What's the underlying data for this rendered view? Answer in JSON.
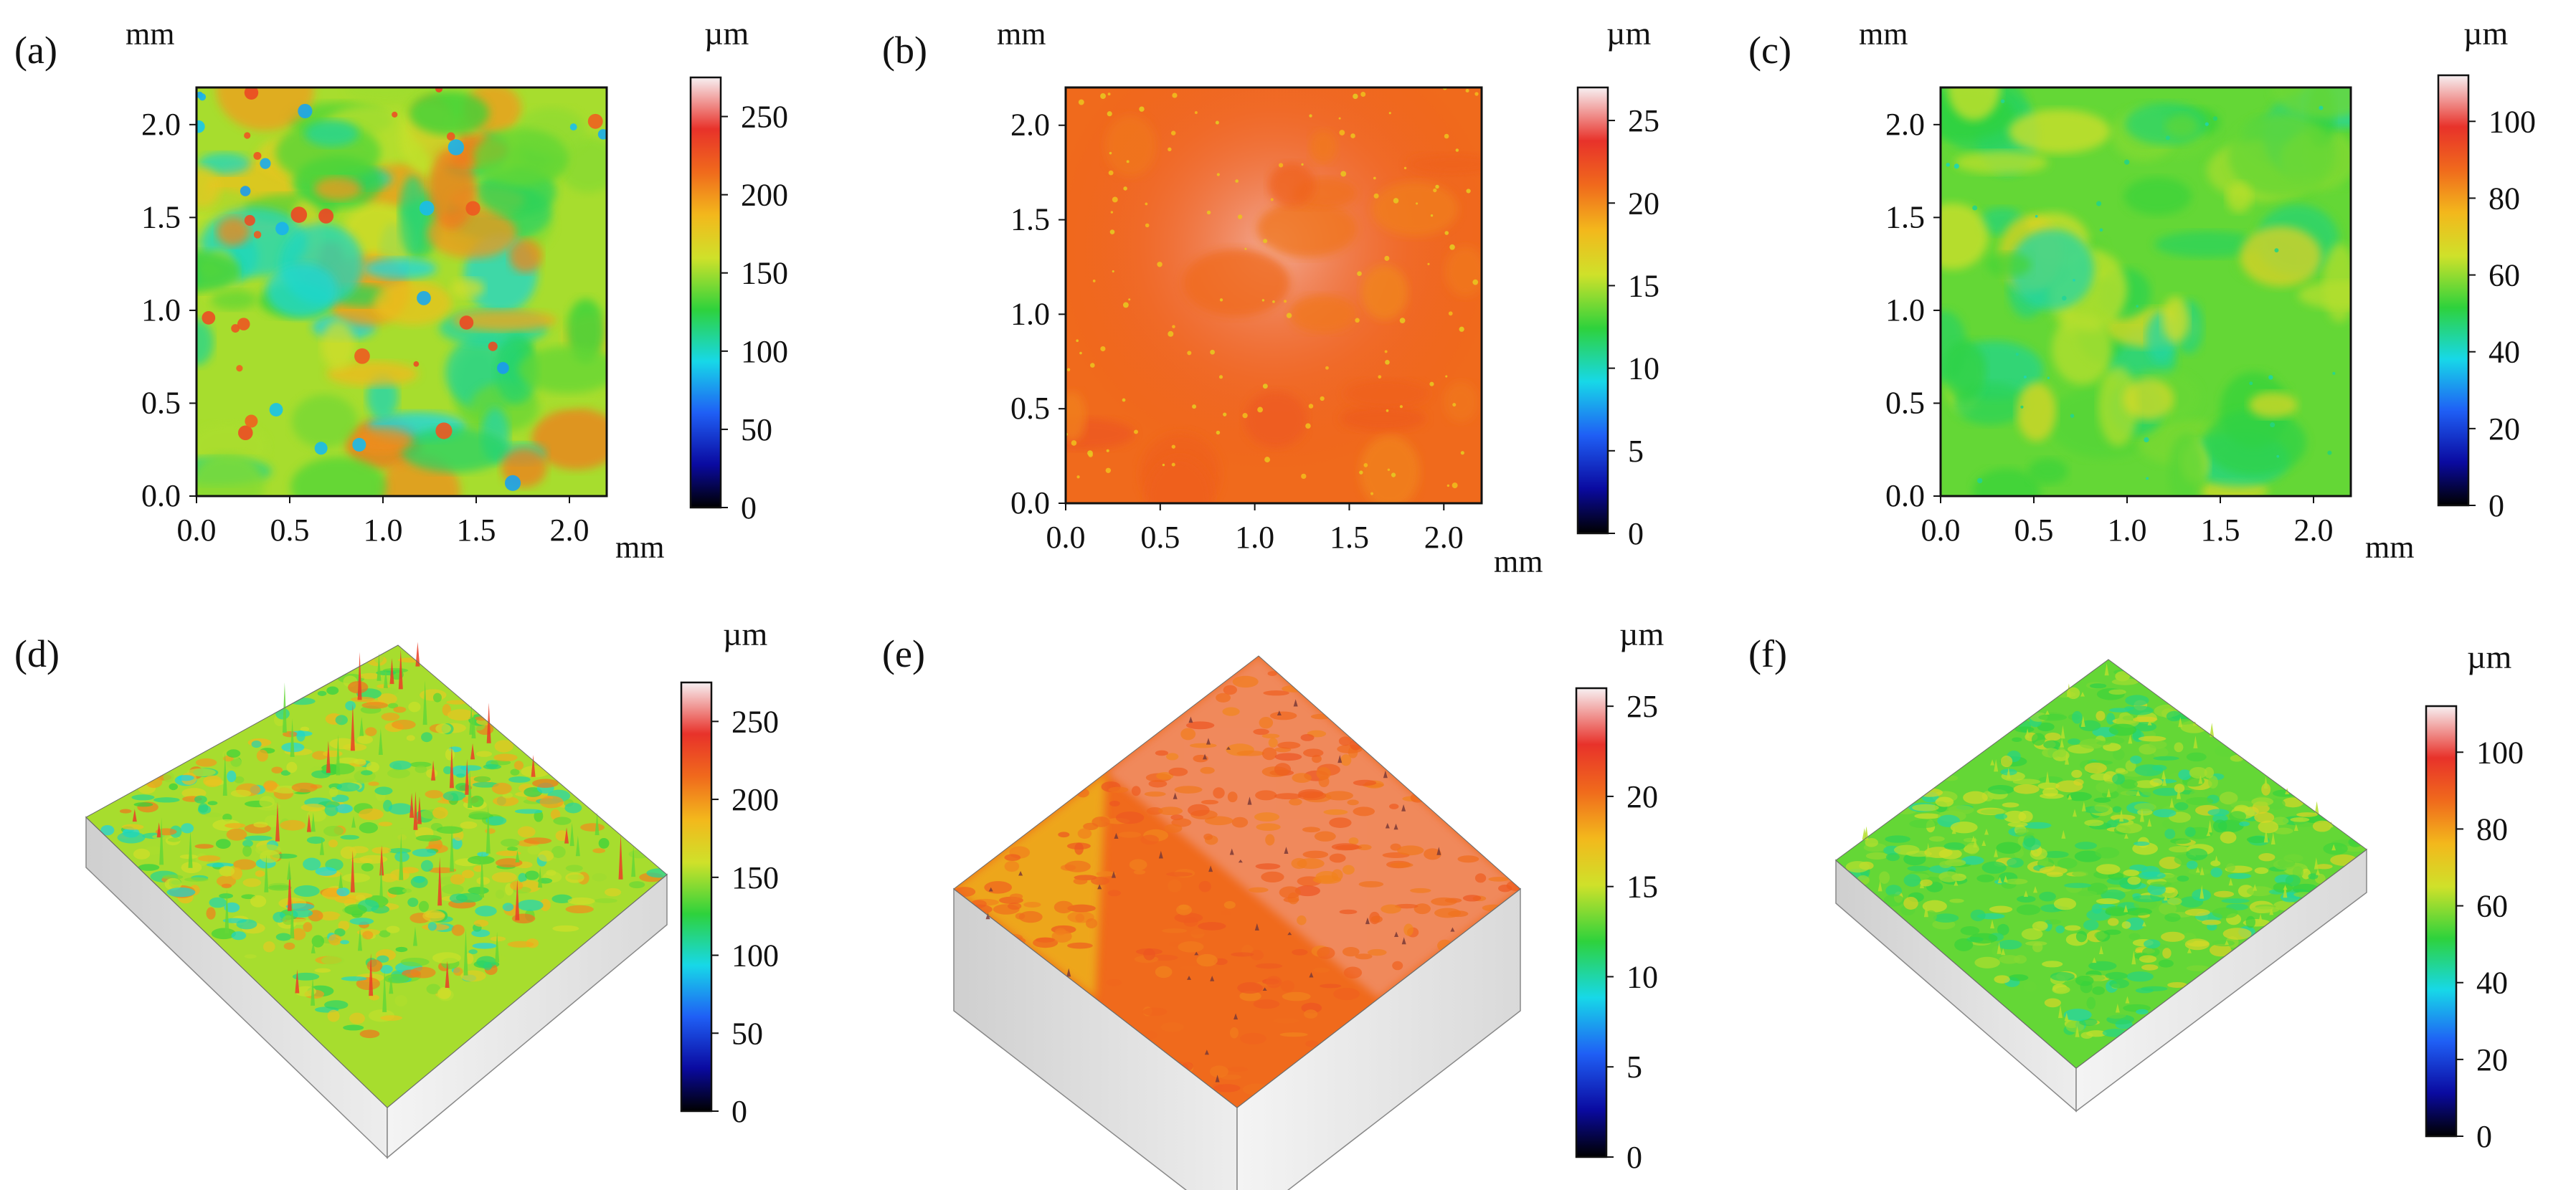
{
  "colors": {
    "colormap": [
      "#000000",
      "#0a0aa0",
      "#1f5ff5",
      "#17d8e8",
      "#2ed23c",
      "#cfe12a",
      "#f3b81c",
      "#f06a1c",
      "#e8322a",
      "#f7f0f2"
    ],
    "tick_color": "#111111"
  },
  "panels": {
    "a": {
      "label": "(a)",
      "kind": "map2d",
      "axis_unit": "mm",
      "bar_unit": "µm",
      "x_ticks": [
        "0.0",
        "0.5",
        "1.0",
        "1.5",
        "2.0"
      ],
      "y_ticks": [
        "0.0",
        "0.5",
        "1.0",
        "1.5",
        "2.0"
      ],
      "bar_ticks": [
        "0",
        "50",
        "100",
        "150",
        "200",
        "250"
      ],
      "bar_max": 275,
      "surface_level": 0.55,
      "surface_variation": "high"
    },
    "b": {
      "label": "(b)",
      "kind": "map2d",
      "axis_unit": "mm",
      "bar_unit": "µm",
      "x_ticks": [
        "0.0",
        "0.5",
        "1.0",
        "1.5",
        "2.0"
      ],
      "y_ticks": [
        "0.0",
        "0.5",
        "1.0",
        "1.5",
        "2.0"
      ],
      "bar_ticks": [
        "0",
        "5",
        "10",
        "15",
        "20",
        "25"
      ],
      "bar_max": 27,
      "surface_level": 0.78,
      "surface_variation": "low"
    },
    "c": {
      "label": "(c)",
      "kind": "map2d",
      "axis_unit": "mm",
      "bar_unit": "µm",
      "x_ticks": [
        "0.0",
        "0.5",
        "1.0",
        "1.5",
        "2.0"
      ],
      "y_ticks": [
        "0.0",
        "0.5",
        "1.0",
        "1.5",
        "2.0"
      ],
      "bar_ticks": [
        "0",
        "20",
        "40",
        "60",
        "80",
        "100"
      ],
      "bar_max": 112,
      "surface_level": 0.5,
      "surface_variation": "medium"
    },
    "d": {
      "label": "(d)",
      "kind": "surface3d",
      "bar_unit": "µm",
      "bar_ticks": [
        "0",
        "50",
        "100",
        "150",
        "200",
        "250"
      ],
      "bar_max": 275,
      "surface_level": 0.55,
      "surface_variation": "high"
    },
    "e": {
      "label": "(e)",
      "kind": "surface3d",
      "bar_unit": "µm",
      "bar_ticks": [
        "0",
        "5",
        "10",
        "15",
        "20",
        "25"
      ],
      "bar_max": 26,
      "surface_level": 0.78,
      "surface_variation": "low"
    },
    "f": {
      "label": "(f)",
      "kind": "surface3d",
      "bar_unit": "µm",
      "bar_ticks": [
        "0",
        "20",
        "40",
        "60",
        "80",
        "100"
      ],
      "bar_max": 112,
      "surface_level": 0.5,
      "surface_variation": "medium"
    }
  }
}
